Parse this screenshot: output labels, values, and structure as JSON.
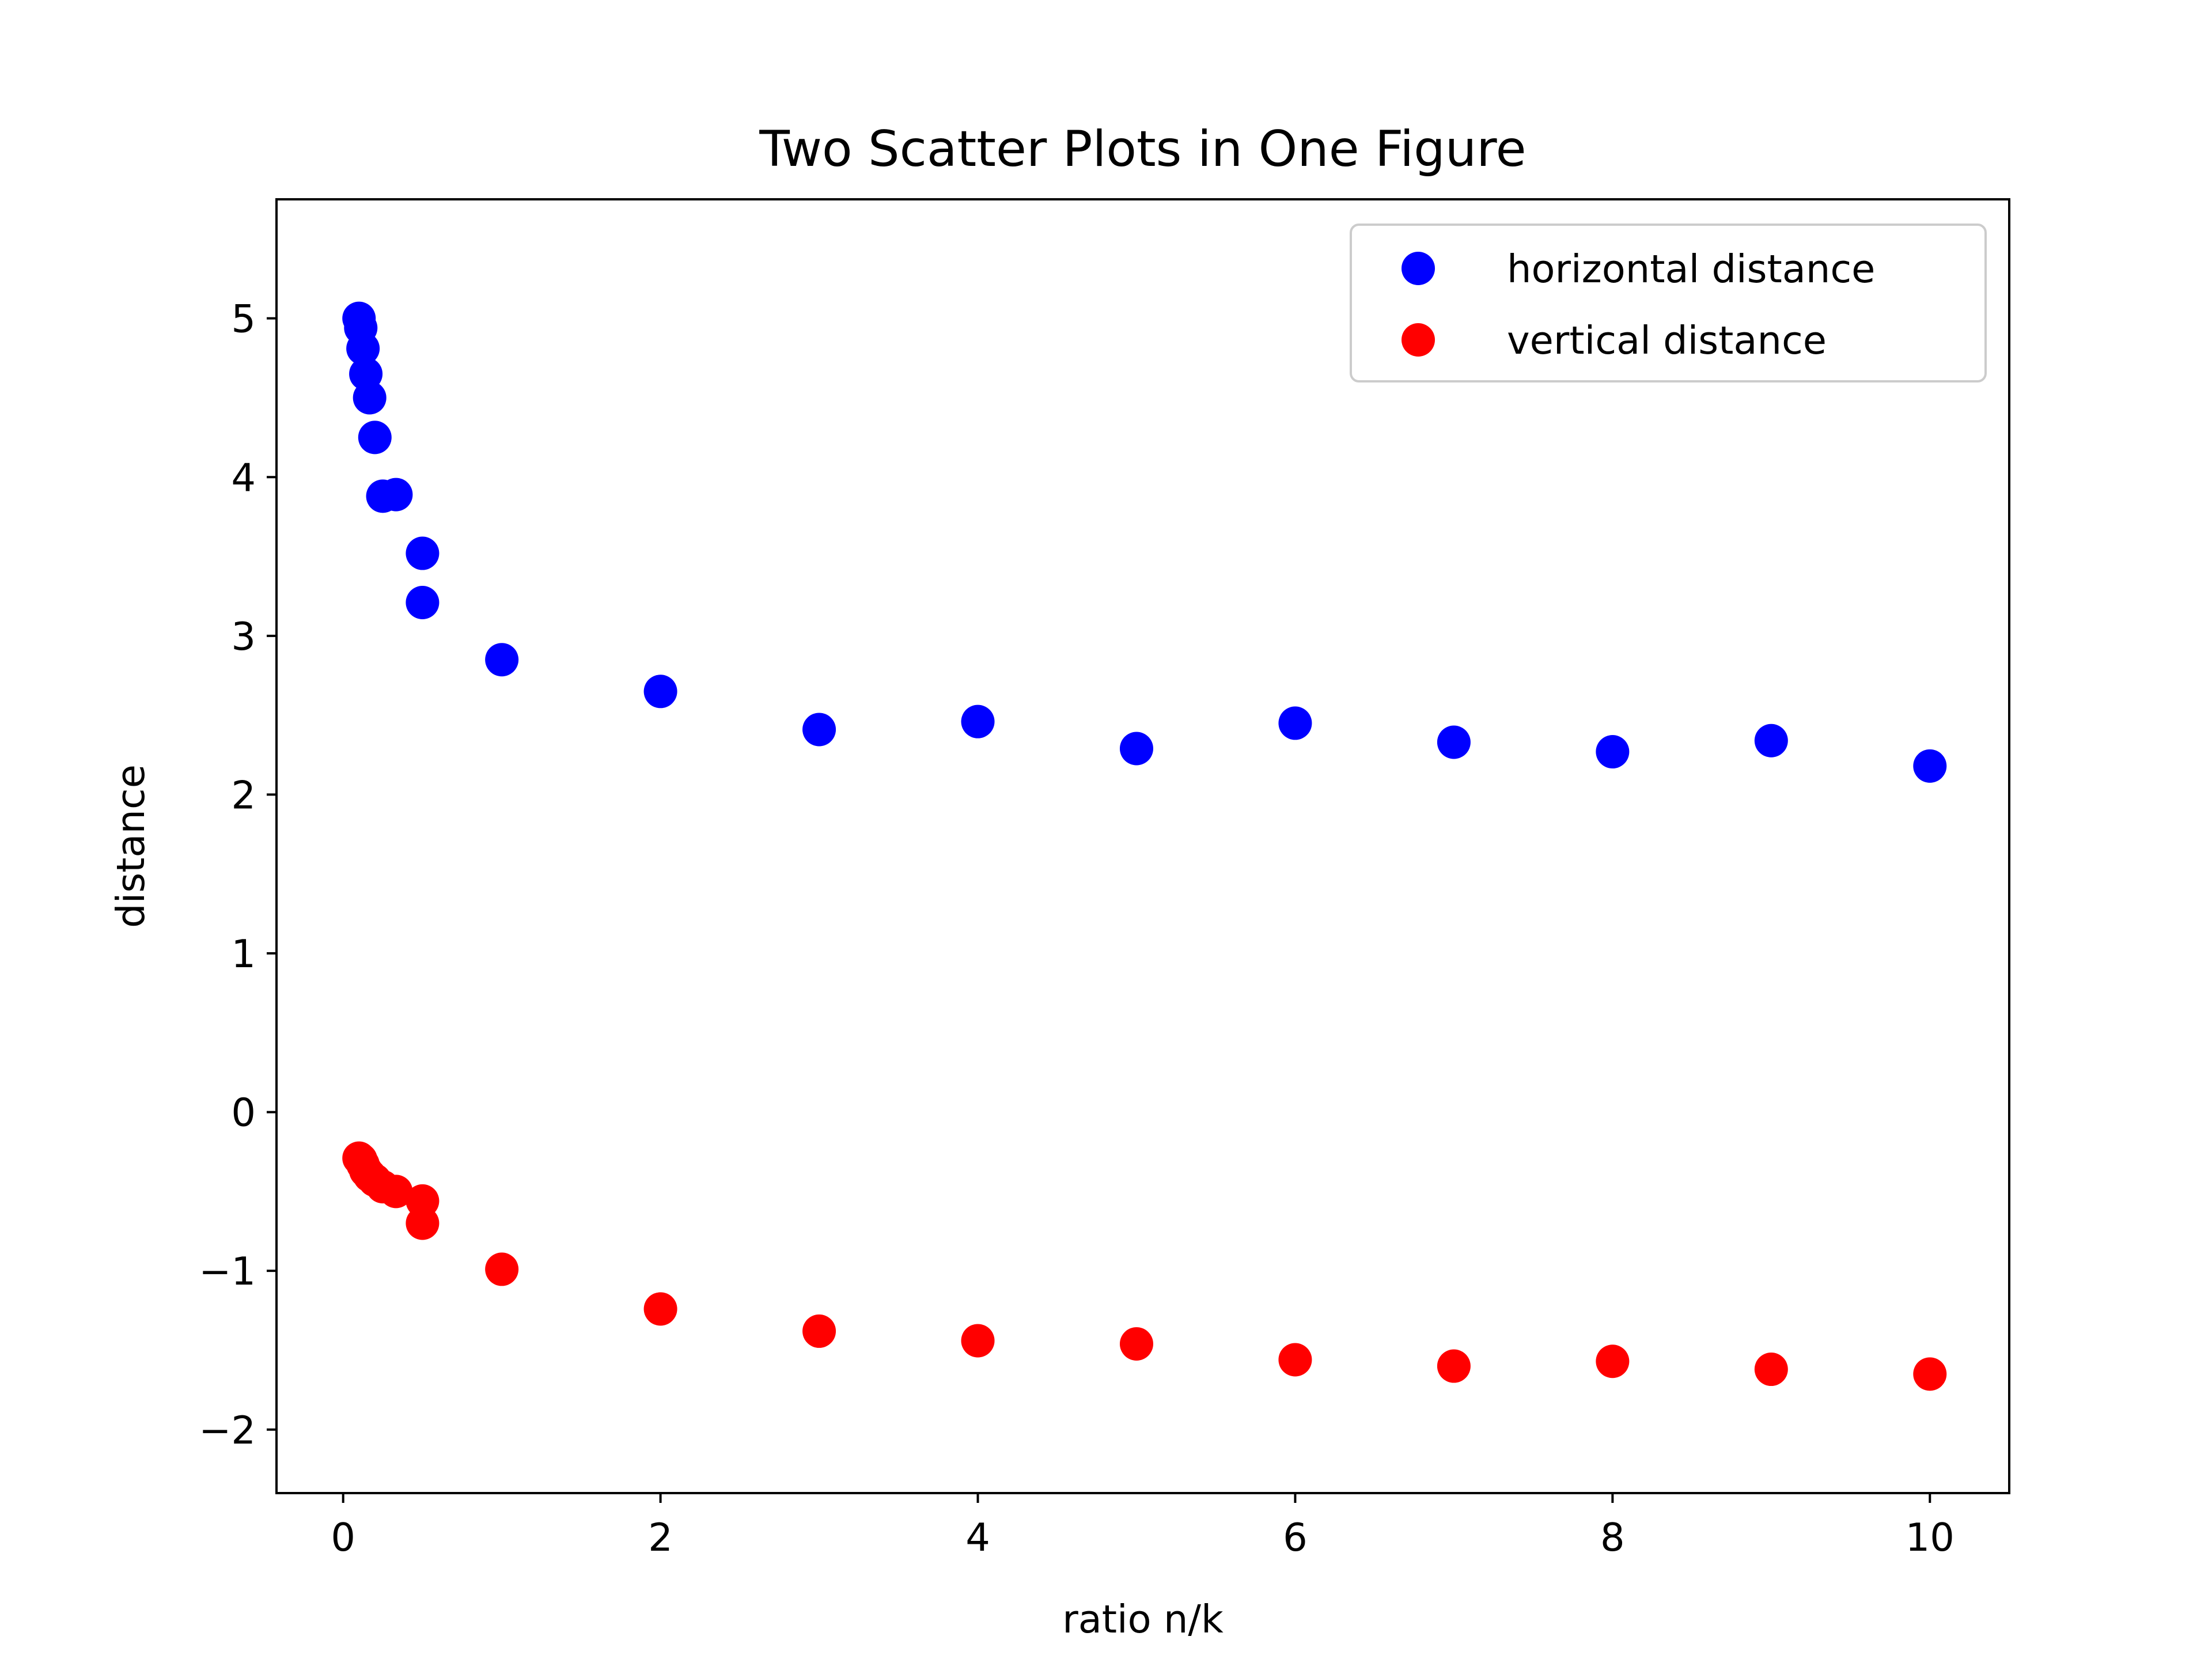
{
  "chart_data": {
    "type": "scatter",
    "title": "Two Scatter Plots in One Figure",
    "xlabel": "ratio n/k",
    "ylabel": "distance",
    "xlim": [
      -0.42,
      10.5
    ],
    "ylim": [
      -2.4,
      5.75
    ],
    "xticks": [
      0,
      2,
      4,
      6,
      8,
      10
    ],
    "xtick_labels": [
      "0",
      "2",
      "4",
      "6",
      "8",
      "10"
    ],
    "yticks": [
      -2,
      -1,
      0,
      1,
      2,
      3,
      4,
      5
    ],
    "ytick_labels": [
      "−2",
      "−1",
      "0",
      "1",
      "2",
      "3",
      "4",
      "5"
    ],
    "grid": false,
    "legend_position": "top-right",
    "series": [
      {
        "name": "horizontal distance",
        "color": "#0000ff",
        "points": [
          {
            "x": 0.1,
            "y": 5.0
          },
          {
            "x": 0.111,
            "y": 4.94
          },
          {
            "x": 0.125,
            "y": 4.81
          },
          {
            "x": 0.143,
            "y": 4.65
          },
          {
            "x": 0.167,
            "y": 4.5
          },
          {
            "x": 0.2,
            "y": 4.25
          },
          {
            "x": 0.25,
            "y": 3.88
          },
          {
            "x": 0.333,
            "y": 3.89
          },
          {
            "x": 0.5,
            "y": 3.52
          },
          {
            "x": 0.5,
            "y": 3.21
          },
          {
            "x": 1,
            "y": 2.85
          },
          {
            "x": 2,
            "y": 2.65
          },
          {
            "x": 3,
            "y": 2.41
          },
          {
            "x": 4,
            "y": 2.46
          },
          {
            "x": 5,
            "y": 2.29
          },
          {
            "x": 6,
            "y": 2.45
          },
          {
            "x": 7,
            "y": 2.33
          },
          {
            "x": 8,
            "y": 2.27
          },
          {
            "x": 9,
            "y": 2.34
          },
          {
            "x": 10,
            "y": 2.18
          }
        ]
      },
      {
        "name": "vertical distance",
        "color": "#ff0000",
        "points": [
          {
            "x": 0.1,
            "y": -0.29
          },
          {
            "x": 0.111,
            "y": -0.3
          },
          {
            "x": 0.125,
            "y": -0.33
          },
          {
            "x": 0.143,
            "y": -0.37
          },
          {
            "x": 0.167,
            "y": -0.4
          },
          {
            "x": 0.2,
            "y": -0.43
          },
          {
            "x": 0.25,
            "y": -0.47
          },
          {
            "x": 0.333,
            "y": -0.5
          },
          {
            "x": 0.5,
            "y": -0.56
          },
          {
            "x": 0.5,
            "y": -0.7
          },
          {
            "x": 1,
            "y": -0.99
          },
          {
            "x": 2,
            "y": -1.24
          },
          {
            "x": 3,
            "y": -1.38
          },
          {
            "x": 4,
            "y": -1.44
          },
          {
            "x": 5,
            "y": -1.46
          },
          {
            "x": 6,
            "y": -1.56
          },
          {
            "x": 7,
            "y": -1.6
          },
          {
            "x": 8,
            "y": -1.57
          },
          {
            "x": 9,
            "y": -1.62
          },
          {
            "x": 10,
            "y": -1.65
          }
        ]
      }
    ]
  }
}
